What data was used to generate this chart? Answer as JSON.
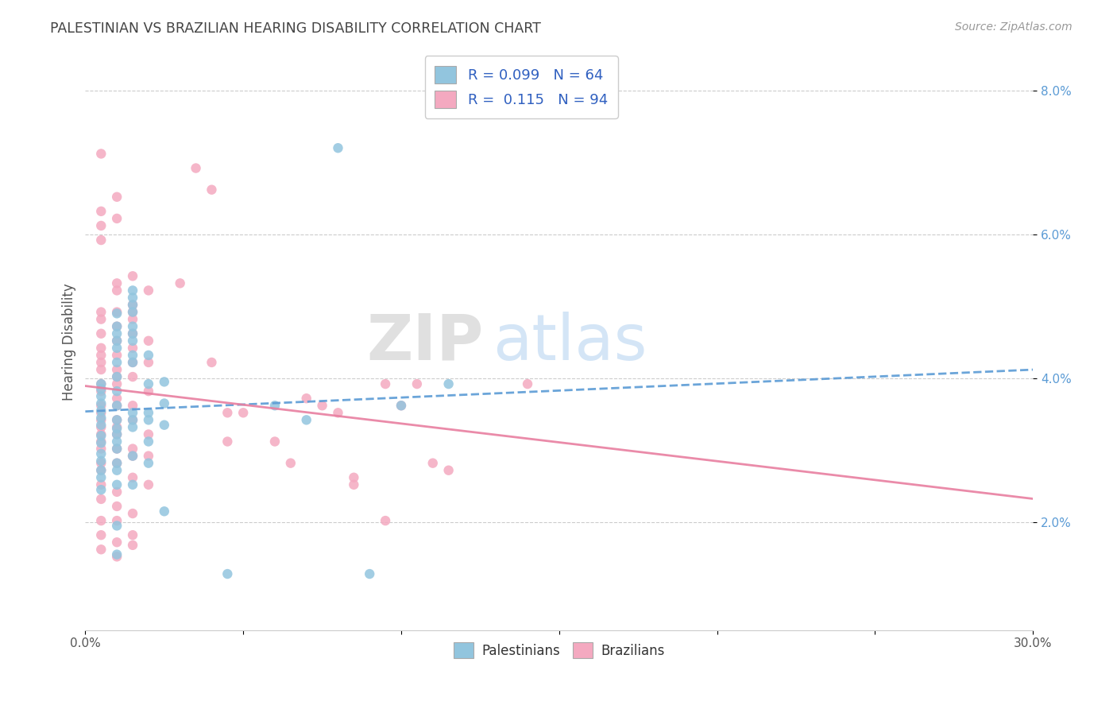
{
  "title": "PALESTINIAN VS BRAZILIAN HEARING DISABILITY CORRELATION CHART",
  "source": "Source: ZipAtlas.com",
  "ylabel": "Hearing Disability",
  "xlim": [
    0.0,
    0.3
  ],
  "ylim": [
    0.005,
    0.085
  ],
  "yticks": [
    0.02,
    0.04,
    0.06,
    0.08
  ],
  "ytick_labels": [
    "2.0%",
    "4.0%",
    "6.0%",
    "8.0%"
  ],
  "xticks": [
    0.0,
    0.05,
    0.1,
    0.15,
    0.2,
    0.25,
    0.3
  ],
  "xtick_labels": [
    "0.0%",
    "",
    "",
    "",
    "",
    "",
    "30.0%"
  ],
  "pal_color": "#92c5de",
  "bra_color": "#f4a9c0",
  "pal_line_color": "#5b9bd5",
  "bra_line_color": "#e87fa0",
  "watermark_zip": "ZIP",
  "watermark_atlas": "atlas",
  "background_color": "#ffffff",
  "grid_color": "#cccccc",
  "palestinians_scatter": [
    [
      0.005,
      0.0335
    ],
    [
      0.005,
      0.031
    ],
    [
      0.005,
      0.0345
    ],
    [
      0.005,
      0.0355
    ],
    [
      0.005,
      0.0365
    ],
    [
      0.005,
      0.0375
    ],
    [
      0.005,
      0.032
    ],
    [
      0.005,
      0.0295
    ],
    [
      0.005,
      0.0285
    ],
    [
      0.005,
      0.0385
    ],
    [
      0.005,
      0.0392
    ],
    [
      0.005,
      0.0272
    ],
    [
      0.005,
      0.0262
    ],
    [
      0.005,
      0.0245
    ],
    [
      0.01,
      0.049
    ],
    [
      0.01,
      0.0452
    ],
    [
      0.01,
      0.0472
    ],
    [
      0.01,
      0.0462
    ],
    [
      0.01,
      0.0442
    ],
    [
      0.01,
      0.0422
    ],
    [
      0.01,
      0.0402
    ],
    [
      0.01,
      0.0382
    ],
    [
      0.01,
      0.0362
    ],
    [
      0.01,
      0.0342
    ],
    [
      0.01,
      0.033
    ],
    [
      0.01,
      0.0322
    ],
    [
      0.01,
      0.0312
    ],
    [
      0.01,
      0.0302
    ],
    [
      0.01,
      0.0282
    ],
    [
      0.01,
      0.0272
    ],
    [
      0.01,
      0.0252
    ],
    [
      0.01,
      0.0195
    ],
    [
      0.01,
      0.0155
    ],
    [
      0.015,
      0.0522
    ],
    [
      0.015,
      0.0512
    ],
    [
      0.015,
      0.0502
    ],
    [
      0.015,
      0.0492
    ],
    [
      0.015,
      0.0472
    ],
    [
      0.015,
      0.0462
    ],
    [
      0.015,
      0.0452
    ],
    [
      0.015,
      0.0432
    ],
    [
      0.015,
      0.0422
    ],
    [
      0.015,
      0.0352
    ],
    [
      0.015,
      0.0342
    ],
    [
      0.015,
      0.0332
    ],
    [
      0.015,
      0.0292
    ],
    [
      0.015,
      0.0252
    ],
    [
      0.02,
      0.0432
    ],
    [
      0.02,
      0.0392
    ],
    [
      0.02,
      0.0352
    ],
    [
      0.02,
      0.0342
    ],
    [
      0.02,
      0.0312
    ],
    [
      0.02,
      0.0282
    ],
    [
      0.025,
      0.0395
    ],
    [
      0.025,
      0.0365
    ],
    [
      0.025,
      0.0335
    ],
    [
      0.025,
      0.0215
    ],
    [
      0.06,
      0.0362
    ],
    [
      0.07,
      0.0342
    ],
    [
      0.08,
      0.072
    ],
    [
      0.1,
      0.0362
    ],
    [
      0.115,
      0.0392
    ],
    [
      0.045,
      0.0128
    ],
    [
      0.09,
      0.0128
    ]
  ],
  "brazilians_scatter": [
    [
      0.005,
      0.0712
    ],
    [
      0.005,
      0.0632
    ],
    [
      0.005,
      0.0612
    ],
    [
      0.005,
      0.0592
    ],
    [
      0.005,
      0.0492
    ],
    [
      0.005,
      0.0482
    ],
    [
      0.005,
      0.0462
    ],
    [
      0.005,
      0.0442
    ],
    [
      0.005,
      0.0432
    ],
    [
      0.005,
      0.0422
    ],
    [
      0.005,
      0.0412
    ],
    [
      0.005,
      0.0392
    ],
    [
      0.005,
      0.0382
    ],
    [
      0.005,
      0.0362
    ],
    [
      0.005,
      0.0352
    ],
    [
      0.005,
      0.0342
    ],
    [
      0.005,
      0.0332
    ],
    [
      0.005,
      0.0322
    ],
    [
      0.005,
      0.0312
    ],
    [
      0.005,
      0.0302
    ],
    [
      0.005,
      0.0282
    ],
    [
      0.005,
      0.0272
    ],
    [
      0.005,
      0.0252
    ],
    [
      0.005,
      0.0232
    ],
    [
      0.005,
      0.0202
    ],
    [
      0.005,
      0.0182
    ],
    [
      0.005,
      0.0162
    ],
    [
      0.01,
      0.0652
    ],
    [
      0.01,
      0.0622
    ],
    [
      0.01,
      0.0532
    ],
    [
      0.01,
      0.0522
    ],
    [
      0.01,
      0.0492
    ],
    [
      0.01,
      0.0472
    ],
    [
      0.01,
      0.0452
    ],
    [
      0.01,
      0.0432
    ],
    [
      0.01,
      0.0412
    ],
    [
      0.01,
      0.0402
    ],
    [
      0.01,
      0.0392
    ],
    [
      0.01,
      0.0372
    ],
    [
      0.01,
      0.0362
    ],
    [
      0.01,
      0.0342
    ],
    [
      0.01,
      0.0332
    ],
    [
      0.01,
      0.0322
    ],
    [
      0.01,
      0.0302
    ],
    [
      0.01,
      0.0282
    ],
    [
      0.01,
      0.0242
    ],
    [
      0.01,
      0.0222
    ],
    [
      0.01,
      0.0202
    ],
    [
      0.01,
      0.0172
    ],
    [
      0.01,
      0.0152
    ],
    [
      0.015,
      0.0542
    ],
    [
      0.015,
      0.0502
    ],
    [
      0.015,
      0.0492
    ],
    [
      0.015,
      0.0482
    ],
    [
      0.015,
      0.0462
    ],
    [
      0.015,
      0.0442
    ],
    [
      0.015,
      0.0422
    ],
    [
      0.015,
      0.0402
    ],
    [
      0.015,
      0.0362
    ],
    [
      0.015,
      0.0342
    ],
    [
      0.015,
      0.0302
    ],
    [
      0.015,
      0.0292
    ],
    [
      0.015,
      0.0262
    ],
    [
      0.015,
      0.0212
    ],
    [
      0.015,
      0.0182
    ],
    [
      0.015,
      0.0168
    ],
    [
      0.02,
      0.0522
    ],
    [
      0.02,
      0.0452
    ],
    [
      0.02,
      0.0422
    ],
    [
      0.02,
      0.0382
    ],
    [
      0.02,
      0.0322
    ],
    [
      0.02,
      0.0292
    ],
    [
      0.02,
      0.0252
    ],
    [
      0.03,
      0.0532
    ],
    [
      0.035,
      0.0692
    ],
    [
      0.04,
      0.0662
    ],
    [
      0.04,
      0.0422
    ],
    [
      0.045,
      0.0352
    ],
    [
      0.045,
      0.0312
    ],
    [
      0.05,
      0.0352
    ],
    [
      0.06,
      0.0312
    ],
    [
      0.065,
      0.0282
    ],
    [
      0.07,
      0.0372
    ],
    [
      0.075,
      0.0362
    ],
    [
      0.08,
      0.0352
    ],
    [
      0.085,
      0.0262
    ],
    [
      0.085,
      0.0252
    ],
    [
      0.095,
      0.0392
    ],
    [
      0.095,
      0.0202
    ],
    [
      0.1,
      0.0362
    ],
    [
      0.105,
      0.0392
    ],
    [
      0.11,
      0.0282
    ],
    [
      0.115,
      0.0272
    ],
    [
      0.14,
      0.0392
    ]
  ]
}
